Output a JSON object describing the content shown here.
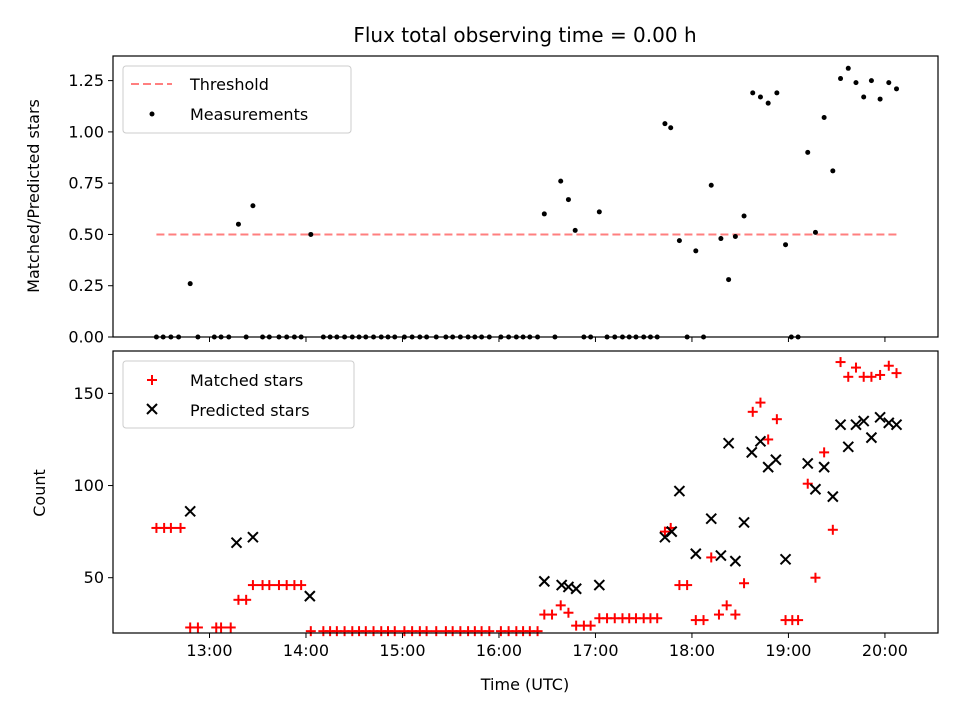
{
  "chart_data": [
    {
      "type": "scatter",
      "title": "Flux total observing time = 0.00 h",
      "xlabel": "",
      "ylabel": "Matched/Predicted stars",
      "xlim": [
        12.0,
        20.55
      ],
      "ylim": [
        0.0,
        1.37
      ],
      "y_ticks": [
        "0.00",
        "0.25",
        "0.50",
        "0.75",
        "1.00",
        "1.25"
      ],
      "y_tick_values": [
        0.0,
        0.25,
        0.5,
        0.75,
        1.0,
        1.25
      ],
      "legend": [
        "Threshold",
        "Measurements"
      ],
      "legend_position": "top-left",
      "threshold": {
        "name": "Threshold",
        "value": 0.5,
        "x_range": [
          12.45,
          20.15
        ],
        "color": "#ff7f7f"
      },
      "series": [
        {
          "name": "Measurements",
          "marker": "dot",
          "color": "#000000",
          "points": [
            [
              12.45,
              0
            ],
            [
              12.52,
              0
            ],
            [
              12.6,
              0
            ],
            [
              12.68,
              0
            ],
            [
              12.8,
              0.26
            ],
            [
              12.88,
              0
            ],
            [
              13.05,
              0
            ],
            [
              13.12,
              0
            ],
            [
              13.2,
              0
            ],
            [
              13.3,
              0.55
            ],
            [
              13.38,
              0
            ],
            [
              13.45,
              0.64
            ],
            [
              13.55,
              0
            ],
            [
              13.62,
              0
            ],
            [
              13.72,
              0
            ],
            [
              13.8,
              0
            ],
            [
              13.88,
              0
            ],
            [
              13.95,
              0
            ],
            [
              14.05,
              0.5
            ],
            [
              14.18,
              0
            ],
            [
              14.25,
              0
            ],
            [
              14.32,
              0
            ],
            [
              14.4,
              0
            ],
            [
              14.48,
              0
            ],
            [
              14.55,
              0
            ],
            [
              14.62,
              0
            ],
            [
              14.7,
              0
            ],
            [
              14.78,
              0
            ],
            [
              14.85,
              0
            ],
            [
              14.92,
              0
            ],
            [
              15.02,
              0
            ],
            [
              15.1,
              0
            ],
            [
              15.18,
              0
            ],
            [
              15.25,
              0
            ],
            [
              15.35,
              0
            ],
            [
              15.45,
              0
            ],
            [
              15.52,
              0
            ],
            [
              15.6,
              0
            ],
            [
              15.68,
              0
            ],
            [
              15.75,
              0
            ],
            [
              15.82,
              0
            ],
            [
              15.9,
              0
            ],
            [
              16.02,
              0
            ],
            [
              16.1,
              0
            ],
            [
              16.18,
              0
            ],
            [
              16.25,
              0
            ],
            [
              16.32,
              0
            ],
            [
              16.4,
              0
            ],
            [
              16.47,
              0.6
            ],
            [
              16.58,
              0
            ],
            [
              16.64,
              0.76
            ],
            [
              16.72,
              0.67
            ],
            [
              16.79,
              0.52
            ],
            [
              16.88,
              0
            ],
            [
              16.95,
              0
            ],
            [
              17.04,
              0.61
            ],
            [
              17.12,
              0
            ],
            [
              17.2,
              0
            ],
            [
              17.28,
              0
            ],
            [
              17.35,
              0
            ],
            [
              17.42,
              0
            ],
            [
              17.5,
              0
            ],
            [
              17.57,
              0
            ],
            [
              17.64,
              0
            ],
            [
              17.72,
              1.04
            ],
            [
              17.78,
              1.02
            ],
            [
              17.87,
              0.47
            ],
            [
              17.95,
              0
            ],
            [
              18.04,
              0.42
            ],
            [
              18.12,
              0
            ],
            [
              18.2,
              0.74
            ],
            [
              18.3,
              0.48
            ],
            [
              18.38,
              0.28
            ],
            [
              18.45,
              0.49
            ],
            [
              18.54,
              0.59
            ],
            [
              18.63,
              1.19
            ],
            [
              18.71,
              1.17
            ],
            [
              18.79,
              1.14
            ],
            [
              18.88,
              1.19
            ],
            [
              18.97,
              0.45
            ],
            [
              19.03,
              0
            ],
            [
              19.1,
              0
            ],
            [
              19.2,
              0.9
            ],
            [
              19.28,
              0.51
            ],
            [
              19.37,
              1.07
            ],
            [
              19.46,
              0.81
            ],
            [
              19.54,
              1.26
            ],
            [
              19.62,
              1.31
            ],
            [
              19.7,
              1.24
            ],
            [
              19.78,
              1.17
            ],
            [
              19.86,
              1.25
            ],
            [
              19.95,
              1.16
            ],
            [
              20.04,
              1.24
            ],
            [
              20.12,
              1.21
            ]
          ]
        }
      ]
    },
    {
      "type": "scatter",
      "title": "",
      "xlabel": "Time (UTC)",
      "ylabel": "Count",
      "xlim": [
        12.0,
        20.55
      ],
      "ylim": [
        20,
        173
      ],
      "x_ticks": [
        "13:00",
        "14:00",
        "15:00",
        "16:00",
        "17:00",
        "18:00",
        "19:00",
        "20:00"
      ],
      "x_tick_values": [
        13,
        14,
        15,
        16,
        17,
        18,
        19,
        20
      ],
      "y_ticks": [
        "50",
        "100",
        "150"
      ],
      "y_tick_values": [
        50,
        100,
        150
      ],
      "legend": [
        "Matched stars",
        "Predicted stars"
      ],
      "legend_position": "top-left",
      "series": [
        {
          "name": "Matched stars",
          "marker": "plus",
          "color": "#ff0000",
          "points": [
            [
              12.45,
              77
            ],
            [
              12.53,
              77
            ],
            [
              12.6,
              77
            ],
            [
              12.7,
              77
            ],
            [
              12.8,
              23
            ],
            [
              12.88,
              23
            ],
            [
              13.07,
              23
            ],
            [
              13.12,
              23
            ],
            [
              13.22,
              23
            ],
            [
              13.3,
              38
            ],
            [
              13.38,
              38
            ],
            [
              13.45,
              46
            ],
            [
              13.55,
              46
            ],
            [
              13.62,
              46
            ],
            [
              13.72,
              46
            ],
            [
              13.8,
              46
            ],
            [
              13.88,
              46
            ],
            [
              13.95,
              46
            ],
            [
              14.05,
              21
            ],
            [
              14.18,
              21
            ],
            [
              14.25,
              21
            ],
            [
              14.32,
              21
            ],
            [
              14.4,
              21
            ],
            [
              14.48,
              21
            ],
            [
              14.55,
              21
            ],
            [
              14.62,
              21
            ],
            [
              14.7,
              21
            ],
            [
              14.78,
              21
            ],
            [
              14.85,
              21
            ],
            [
              14.92,
              21
            ],
            [
              15.02,
              21
            ],
            [
              15.1,
              21
            ],
            [
              15.18,
              21
            ],
            [
              15.25,
              21
            ],
            [
              15.35,
              21
            ],
            [
              15.45,
              21
            ],
            [
              15.52,
              21
            ],
            [
              15.6,
              21
            ],
            [
              15.68,
              21
            ],
            [
              15.75,
              21
            ],
            [
              15.82,
              21
            ],
            [
              15.9,
              21
            ],
            [
              16.02,
              21
            ],
            [
              16.1,
              21
            ],
            [
              16.18,
              21
            ],
            [
              16.25,
              21
            ],
            [
              16.32,
              21
            ],
            [
              16.4,
              21
            ],
            [
              16.47,
              30
            ],
            [
              16.55,
              30
            ],
            [
              16.64,
              35
            ],
            [
              16.72,
              31
            ],
            [
              16.8,
              24
            ],
            [
              16.88,
              24
            ],
            [
              16.95,
              24
            ],
            [
              17.04,
              28
            ],
            [
              17.12,
              28
            ],
            [
              17.2,
              28
            ],
            [
              17.28,
              28
            ],
            [
              17.35,
              28
            ],
            [
              17.42,
              28
            ],
            [
              17.5,
              28
            ],
            [
              17.57,
              28
            ],
            [
              17.64,
              28
            ],
            [
              17.72,
              75
            ],
            [
              17.78,
              77
            ],
            [
              17.87,
              46
            ],
            [
              17.95,
              46
            ],
            [
              18.04,
              27
            ],
            [
              18.12,
              27
            ],
            [
              18.2,
              61
            ],
            [
              18.28,
              30
            ],
            [
              18.36,
              35
            ],
            [
              18.45,
              30
            ],
            [
              18.54,
              47
            ],
            [
              18.63,
              140
            ],
            [
              18.71,
              145
            ],
            [
              18.79,
              125
            ],
            [
              18.88,
              136
            ],
            [
              18.97,
              27
            ],
            [
              19.04,
              27
            ],
            [
              19.1,
              27
            ],
            [
              19.2,
              101
            ],
            [
              19.28,
              50
            ],
            [
              19.37,
              118
            ],
            [
              19.46,
              76
            ],
            [
              19.54,
              167
            ],
            [
              19.62,
              159
            ],
            [
              19.7,
              164
            ],
            [
              19.78,
              159
            ],
            [
              19.86,
              159
            ],
            [
              19.95,
              160
            ],
            [
              20.04,
              165
            ],
            [
              20.12,
              161
            ]
          ]
        },
        {
          "name": "Predicted stars",
          "marker": "x",
          "color": "#000000",
          "points": [
            [
              12.8,
              86
            ],
            [
              13.28,
              69
            ],
            [
              13.45,
              72
            ],
            [
              14.04,
              40
            ],
            [
              16.47,
              48
            ],
            [
              16.65,
              46
            ],
            [
              16.72,
              45
            ],
            [
              16.8,
              44
            ],
            [
              17.04,
              46
            ],
            [
              17.72,
              72
            ],
            [
              17.79,
              75
            ],
            [
              17.87,
              97
            ],
            [
              18.04,
              63
            ],
            [
              18.2,
              82
            ],
            [
              18.3,
              62
            ],
            [
              18.38,
              123
            ],
            [
              18.45,
              59
            ],
            [
              18.54,
              80
            ],
            [
              18.62,
              118
            ],
            [
              18.71,
              124
            ],
            [
              18.79,
              110
            ],
            [
              18.87,
              114
            ],
            [
              18.97,
              60
            ],
            [
              19.2,
              112
            ],
            [
              19.28,
              98
            ],
            [
              19.37,
              110
            ],
            [
              19.46,
              94
            ],
            [
              19.54,
              133
            ],
            [
              19.62,
              121
            ],
            [
              19.7,
              133
            ],
            [
              19.78,
              135
            ],
            [
              19.86,
              126
            ],
            [
              19.95,
              137
            ],
            [
              20.04,
              134
            ],
            [
              20.12,
              133
            ]
          ]
        }
      ]
    }
  ]
}
